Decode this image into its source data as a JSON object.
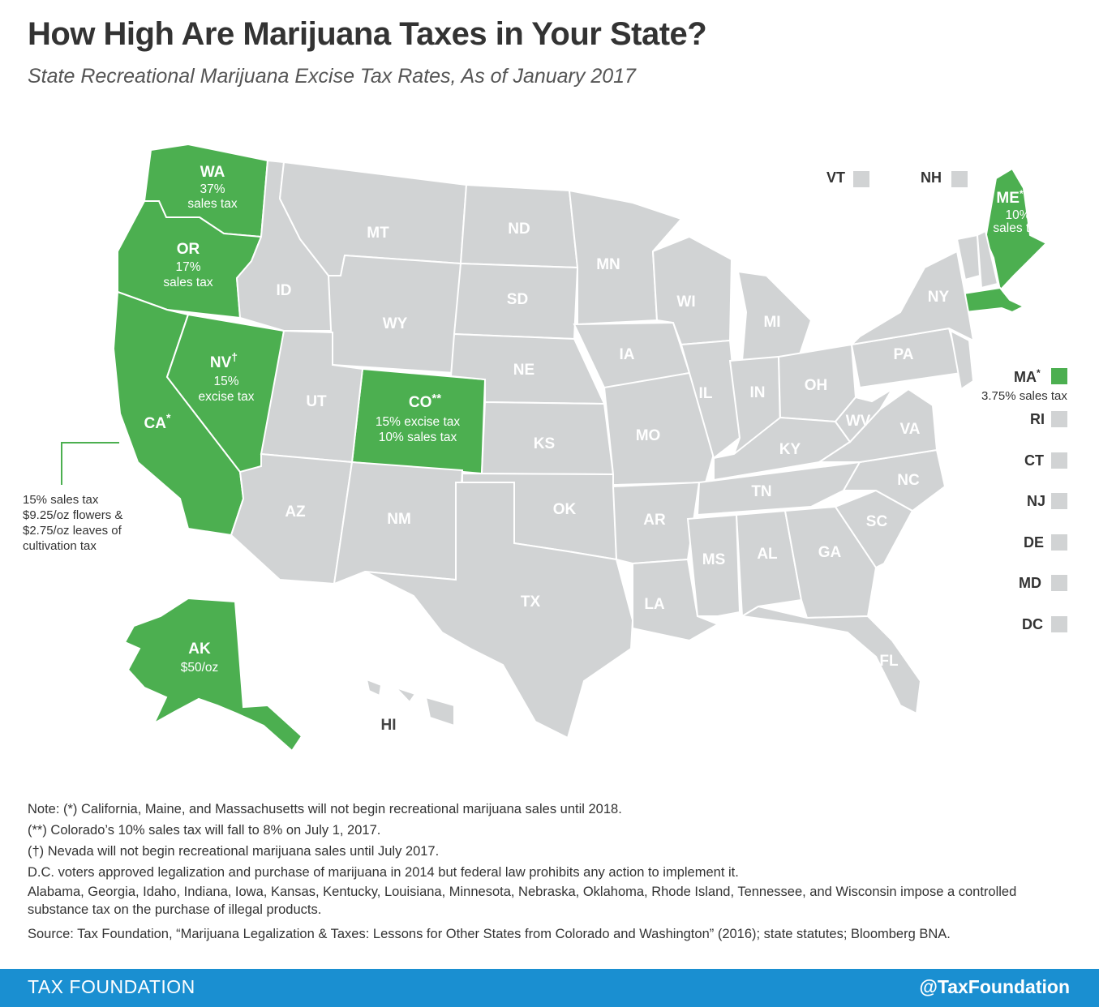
{
  "header": {
    "title": "How High Are Marijuana Taxes in Your State?",
    "subtitle": "State Recreational Marijuana Excise Tax Rates, As of January 2017"
  },
  "colors": {
    "legal": "#4caf50",
    "no_tax": "#d1d3d4",
    "footer": "#1a8fd1"
  },
  "map": {
    "states": {
      "WA": {
        "abbr": "WA",
        "tax": "37%",
        "tax2": "sales tax"
      },
      "OR": {
        "abbr": "OR",
        "tax": "17%",
        "tax2": "sales tax"
      },
      "NV": {
        "abbr": "NV",
        "mark": "†",
        "tax": "15%",
        "tax2": "excise tax"
      },
      "CA": {
        "abbr": "CA",
        "mark": "*"
      },
      "CO": {
        "abbr": "CO",
        "mark": "**",
        "tax": "15% excise tax",
        "tax2": "10% sales tax"
      },
      "AK": {
        "abbr": "AK",
        "tax": "$50/oz"
      },
      "ME": {
        "abbr": "ME",
        "mark": "*",
        "tax": "10%",
        "tax2": "sales tax"
      },
      "MT": "MT",
      "ND": "ND",
      "MN": "MN",
      "ID": "ID",
      "SD": "SD",
      "WY": "WY",
      "WI": "WI",
      "MI": "MI",
      "NY": "NY",
      "NE": "NE",
      "IA": "IA",
      "PA": "PA",
      "UT": "UT",
      "IL": "IL",
      "IN": "IN",
      "OH": "OH",
      "WV": "WV",
      "VA": "VA",
      "KS": "KS",
      "MO": "MO",
      "KY": "KY",
      "NC": "NC",
      "TN": "TN",
      "AZ": "AZ",
      "NM": "NM",
      "OK": "OK",
      "AR": "AR",
      "SC": "SC",
      "MS": "MS",
      "AL": "AL",
      "GA": "GA",
      "TX": "TX",
      "LA": "LA",
      "FL": "FL",
      "HI": "HI"
    },
    "ca_note": [
      "15% sales tax",
      "$9.25/oz flowers &",
      "$2.75/oz leaves of",
      "cultivation tax"
    ]
  },
  "side_states": {
    "VT": "VT",
    "NH": "NH",
    "MA": {
      "abbr": "MA",
      "mark": "*",
      "tax": "3.75% sales tax"
    },
    "RI": "RI",
    "CT": "CT",
    "NJ": "NJ",
    "DE": "DE",
    "MD": "MD",
    "DC": "DC"
  },
  "notes": [
    "Note: (*) California, Maine, and Massachusetts will not begin recreational marijuana sales until 2018.",
    "(**) Colorado’s 10% sales tax will fall to 8% on July 1, 2017.",
    "(†) Nevada will not begin recreational marijuana sales until July 2017.",
    "D.C. voters approved legalization and purchase of marijuana in 2014 but federal law prohibits any action to implement it.",
    "Alabama, Georgia, Idaho, Indiana, Iowa, Kansas, Kentucky, Louisiana, Minnesota, Nebraska, Oklahoma, Rhode Island, Tennessee, and Wisconsin impose a controlled substance tax on the purchase of illegal products.",
    "Source: Tax Foundation, “Marijuana Legalization & Taxes: Lessons for Other States from Colorado and Washington” (2016); state statutes; Bloomberg BNA."
  ],
  "footer": {
    "brand": "TAX FOUNDATION",
    "handle": "@TaxFoundation"
  }
}
